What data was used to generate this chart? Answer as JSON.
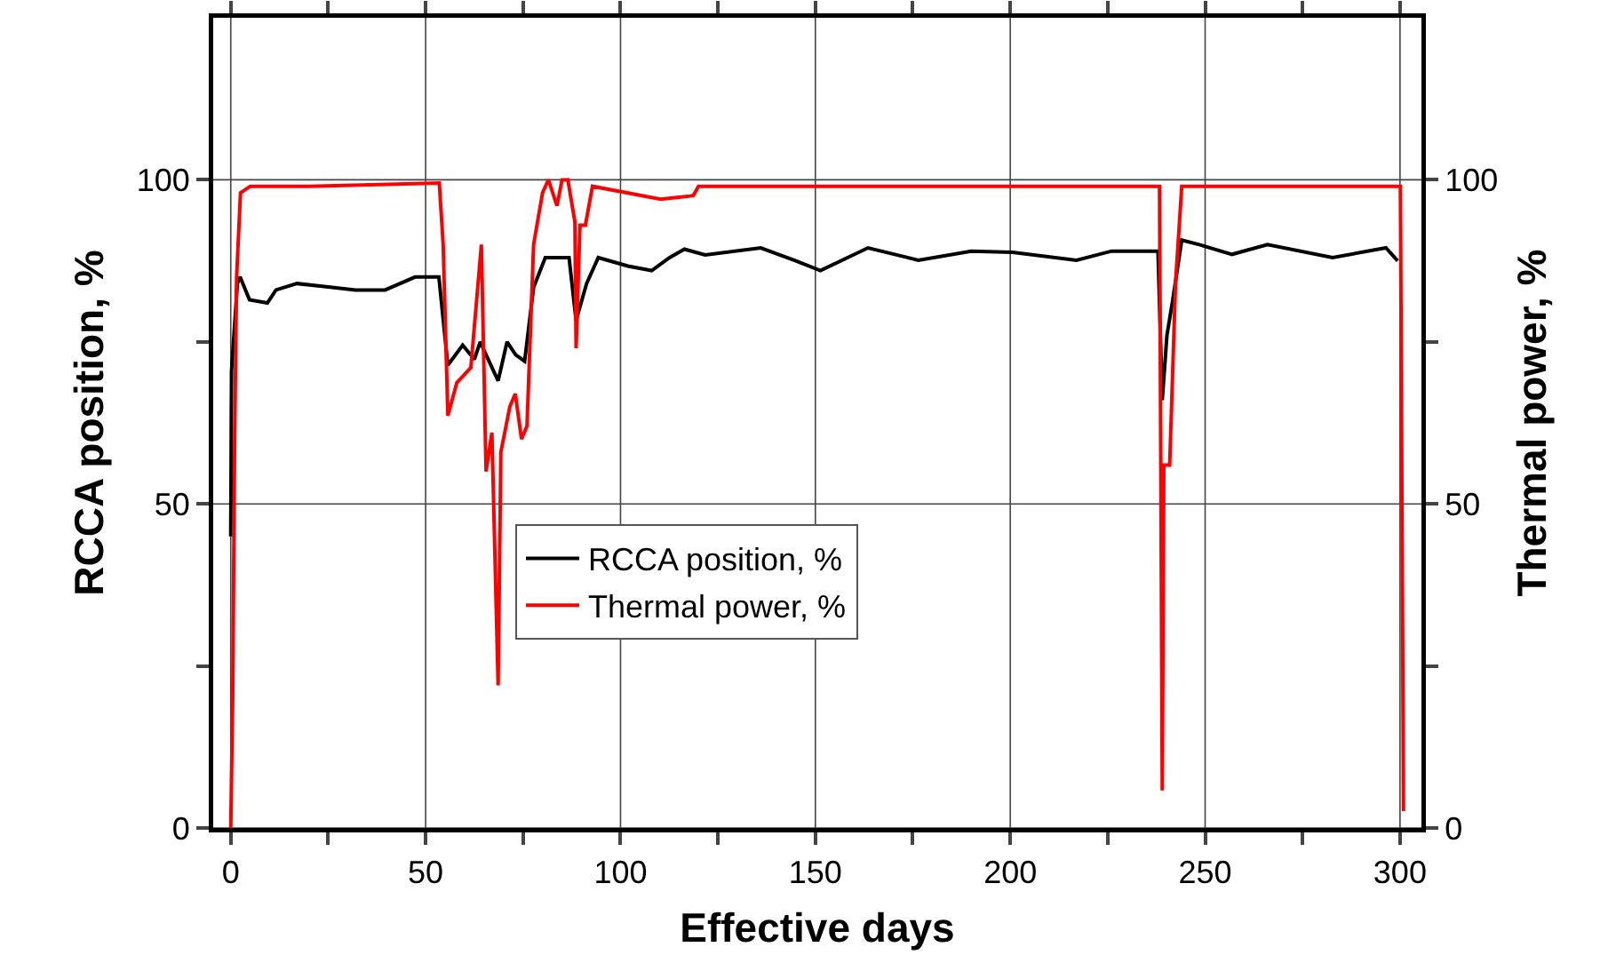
{
  "chart_data": {
    "type": "line",
    "xlabel": "Effective days",
    "ylabel": "RCCA position, %",
    "y2label": "Thermal power, %",
    "xlim": [
      -4.5,
      305.5
    ],
    "ylim": [
      0,
      125
    ],
    "y2lim": [
      0,
      125
    ],
    "xticks": [
      0,
      {
        "value": 25,
        "label": null
      },
      50,
      {
        "value": 75,
        "label": null
      },
      100,
      {
        "value": 125,
        "label": null
      },
      150,
      {
        "value": 175,
        "label": null
      },
      200,
      {
        "value": 225,
        "label": null
      },
      250,
      {
        "value": 275,
        "label": null
      },
      300
    ],
    "yticks": [
      0,
      {
        "value": 25,
        "label": null
      },
      50,
      {
        "value": 75,
        "label": null
      },
      100
    ],
    "y2ticks": [
      0,
      {
        "value": 25,
        "label": null
      },
      50,
      {
        "value": 75,
        "label": null
      },
      100
    ],
    "grid": true,
    "legend": "center",
    "marker": "none",
    "line_style": "solid",
    "series": [
      {
        "name": "RCCA position, %",
        "color": "#000000",
        "x": [
          0,
          0.2,
          1.7,
          2.4,
          4.8,
          9.4,
          11.6,
          17,
          24.5,
          32,
          39.6,
          47.3,
          53.4,
          55.7,
          59.5,
          62.5,
          64,
          65.5,
          68.6,
          70.9,
          73.1,
          75.4,
          77.7,
          80.7,
          86.8,
          88.6,
          91.3,
          94.3,
          101.9,
          108,
          112.6,
          116.4,
          121.7,
          136,
          145,
          151.3,
          163.5,
          176.4,
          190,
          200.6,
          217,
          226,
          237.9,
          239,
          240.2,
          241.7,
          244,
          248.5,
          256.9,
          266,
          282.7,
          296.4,
          299.4
        ],
        "values": [
          45,
          70.5,
          84,
          85,
          81.5,
          81,
          83,
          84,
          83.5,
          83,
          83,
          85,
          85,
          71.4,
          74.5,
          72.3,
          75,
          73,
          69,
          75,
          73,
          72,
          83.4,
          88,
          88,
          78.3,
          84,
          88,
          86.7,
          86,
          88,
          89.3,
          88.4,
          89.5,
          87.5,
          86,
          89.5,
          87.6,
          89,
          88.8,
          87.6,
          89,
          89,
          66,
          76,
          81.5,
          90.7,
          90,
          88.5,
          90,
          88,
          89.5,
          87.5
        ]
      },
      {
        "name": "Thermal power, %",
        "color": "#ff0000",
        "axis": "y2",
        "x": [
          0,
          0.5,
          1,
          1.5,
          2.5,
          5,
          20,
          53.5,
          54.5,
          55.7,
          58,
          61.6,
          64.3,
          65.5,
          67,
          68.6,
          69.3,
          71.6,
          73,
          74.6,
          76,
          77.7,
          80,
          81.5,
          83.7,
          85,
          86.5,
          88.3,
          88.6,
          89.6,
          91,
          92.8,
          110.3,
          117.9,
          118.7,
          120,
          200,
          238.3,
          239,
          239.4,
          240.9,
          242.4,
          244,
          270,
          300.1,
          300.9
        ],
        "values": [
          0,
          20,
          60,
          85,
          98,
          99,
          99,
          99.5,
          90,
          63.6,
          68.7,
          71,
          90,
          55,
          61,
          22,
          58,
          65,
          67,
          60,
          62,
          90,
          98,
          100,
          96,
          100,
          100,
          93.5,
          74,
          93,
          93,
          99,
          97,
          97.5,
          97.6,
          99,
          99,
          99,
          5.8,
          56,
          56,
          84,
          99,
          99,
          99,
          2.6
        ]
      }
    ]
  }
}
